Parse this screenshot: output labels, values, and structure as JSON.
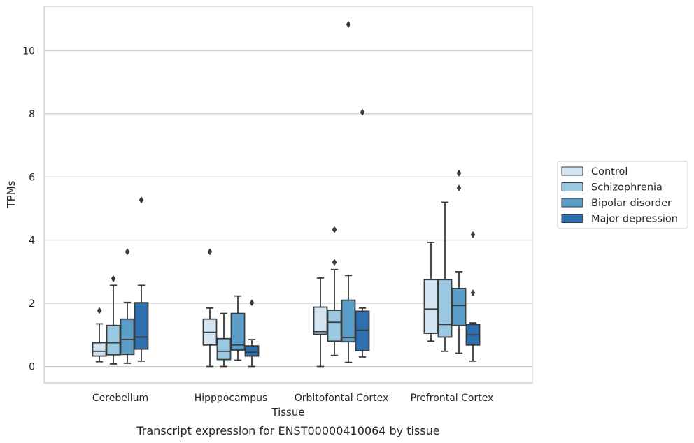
{
  "chart_data": {
    "type": "box",
    "xlabel": "Tissue",
    "ylabel": "TPMs",
    "caption": "Transcript expression for ENST00000410064 by tissue",
    "ylim": [
      -0.5,
      11.4
    ],
    "yticks": [
      0,
      2,
      4,
      6,
      8,
      10
    ],
    "grid": true,
    "legend_position": "right",
    "categories": [
      "Cerebellum",
      "Hipppocampus",
      "Orbitofontal Cortex",
      "Prefrontal Cortex"
    ],
    "series": [
      {
        "name": "Control",
        "color": "#d3e4f3",
        "boxes": [
          {
            "whislo": 0.15,
            "q1": 0.33,
            "med": 0.48,
            "q3": 0.75,
            "whishi": 1.35,
            "fliers": [
              1.77
            ]
          },
          {
            "whislo": 0.0,
            "q1": 0.68,
            "med": 1.08,
            "q3": 1.5,
            "whishi": 1.85,
            "fliers": [
              3.63
            ]
          },
          {
            "whislo": 0.0,
            "q1": 1.02,
            "med": 1.1,
            "q3": 1.88,
            "whishi": 2.8,
            "fliers": []
          },
          {
            "whislo": 0.8,
            "q1": 1.05,
            "med": 1.82,
            "q3": 2.75,
            "whishi": 3.93,
            "fliers": []
          }
        ]
      },
      {
        "name": "Schizophrenia",
        "color": "#9ac8e0",
        "boxes": [
          {
            "whislo": 0.08,
            "q1": 0.37,
            "med": 0.75,
            "q3": 1.3,
            "whishi": 2.57,
            "fliers": [
              2.78
            ]
          },
          {
            "whislo": 0.0,
            "q1": 0.22,
            "med": 0.48,
            "q3": 0.88,
            "whishi": 1.68,
            "fliers": []
          },
          {
            "whislo": 0.35,
            "q1": 0.8,
            "med": 1.4,
            "q3": 1.78,
            "whishi": 3.07,
            "fliers": [
              3.3,
              4.33
            ]
          },
          {
            "whislo": 0.48,
            "q1": 0.93,
            "med": 1.33,
            "q3": 2.75,
            "whishi": 5.2,
            "fliers": []
          }
        ]
      },
      {
        "name": "Bipolar disorder",
        "color": "#5a9ec9",
        "boxes": [
          {
            "whislo": 0.1,
            "q1": 0.38,
            "med": 0.85,
            "q3": 1.5,
            "whishi": 2.03,
            "fliers": [
              3.63
            ]
          },
          {
            "whislo": 0.2,
            "q1": 0.52,
            "med": 0.68,
            "q3": 1.68,
            "whishi": 2.23,
            "fliers": []
          },
          {
            "whislo": 0.13,
            "q1": 0.78,
            "med": 0.92,
            "q3": 2.1,
            "whishi": 2.88,
            "fliers": [
              10.83
            ]
          },
          {
            "whislo": 0.42,
            "q1": 1.3,
            "med": 1.93,
            "q3": 2.47,
            "whishi": 3.0,
            "fliers": [
              5.65,
              6.12
            ]
          }
        ]
      },
      {
        "name": "Major depression",
        "color": "#2d6faf",
        "boxes": [
          {
            "whislo": 0.17,
            "q1": 0.55,
            "med": 0.93,
            "q3": 2.02,
            "whishi": 2.57,
            "fliers": [
              5.27
            ]
          },
          {
            "whislo": 0.0,
            "q1": 0.33,
            "med": 0.45,
            "q3": 0.65,
            "whishi": 0.85,
            "fliers": [
              2.02
            ]
          },
          {
            "whislo": 0.3,
            "q1": 0.5,
            "med": 1.15,
            "q3": 1.75,
            "whishi": 1.85,
            "fliers": [
              8.05
            ]
          },
          {
            "whislo": 0.17,
            "q1": 0.68,
            "med": 1.0,
            "q3": 1.33,
            "whishi": 1.38,
            "fliers": [
              2.33,
              4.17
            ]
          }
        ]
      }
    ]
  }
}
